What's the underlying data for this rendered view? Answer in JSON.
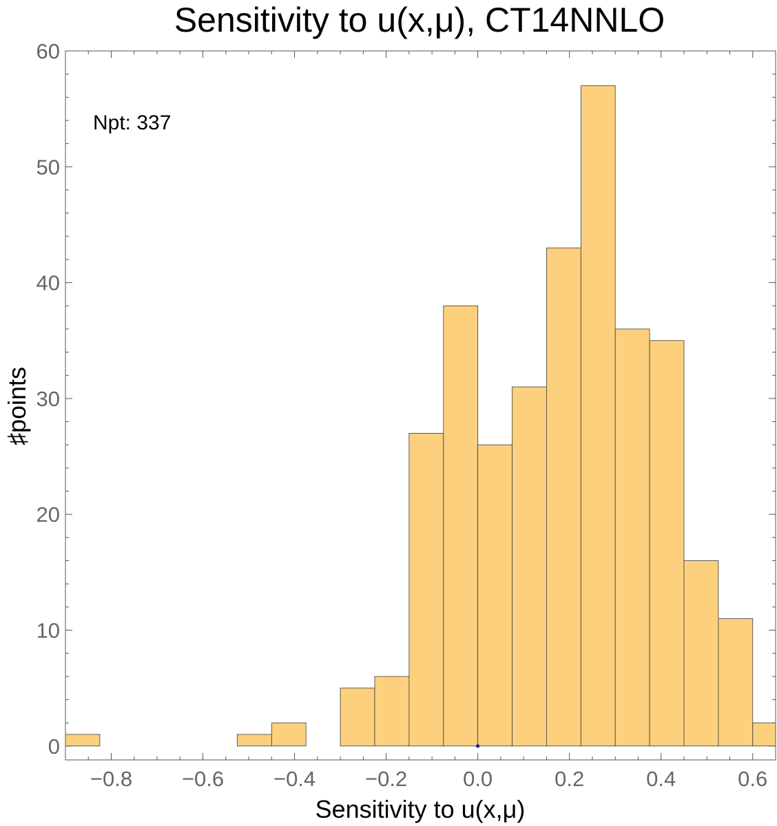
{
  "chart_data": {
    "type": "bar",
    "title": "Sensitivity to u(x,μ), CT14NNLO",
    "xlabel": "Sensitivity to u(x,μ)",
    "ylabel": "♯points",
    "annotation": "Npt: 337",
    "xlim": [
      -0.9,
      0.65
    ],
    "ylim": [
      -1.2,
      60
    ],
    "bin_width": 0.075,
    "bins": [
      {
        "x0": -0.9,
        "x1": -0.825,
        "count": 1
      },
      {
        "x0": -0.525,
        "x1": -0.45,
        "count": 1
      },
      {
        "x0": -0.45,
        "x1": -0.375,
        "count": 2
      },
      {
        "x0": -0.3,
        "x1": -0.225,
        "count": 5
      },
      {
        "x0": -0.225,
        "x1": -0.15,
        "count": 6
      },
      {
        "x0": -0.15,
        "x1": -0.075,
        "count": 27
      },
      {
        "x0": -0.075,
        "x1": 0.0,
        "count": 38
      },
      {
        "x0": 0.0,
        "x1": 0.075,
        "count": 26
      },
      {
        "x0": 0.075,
        "x1": 0.15,
        "count": 31
      },
      {
        "x0": 0.15,
        "x1": 0.225,
        "count": 43
      },
      {
        "x0": 0.225,
        "x1": 0.3,
        "count": 57
      },
      {
        "x0": 0.3,
        "x1": 0.375,
        "count": 36
      },
      {
        "x0": 0.375,
        "x1": 0.45,
        "count": 35
      },
      {
        "x0": 0.45,
        "x1": 0.525,
        "count": 16
      },
      {
        "x0": 0.525,
        "x1": 0.6,
        "count": 11
      },
      {
        "x0": 0.6,
        "x1": 0.675,
        "count": 2
      }
    ],
    "x_ticks": [
      "−0.8",
      "−0.6",
      "−0.4",
      "−0.2",
      "0.0",
      "0.2",
      "0.4",
      "0.6"
    ],
    "x_tick_values": [
      -0.8,
      -0.6,
      -0.4,
      -0.2,
      0.0,
      0.2,
      0.4,
      0.6
    ],
    "y_ticks": [
      "0",
      "10",
      "20",
      "30",
      "40",
      "50",
      "60"
    ],
    "y_tick_values": [
      0,
      10,
      20,
      30,
      40,
      50,
      60
    ],
    "marker_point": {
      "x": 0.0,
      "y": 0
    },
    "colors": {
      "bar_fill": "#fdd07e",
      "bar_stroke": "#3a3a3a",
      "frame": "#555555",
      "tick_text": "#666666",
      "marker": "#1a1aa0"
    },
    "grid": false
  }
}
